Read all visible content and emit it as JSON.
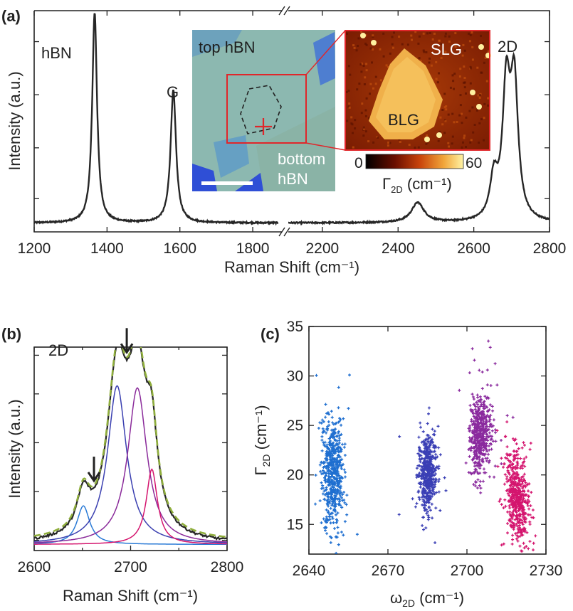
{
  "chart_data": [
    {
      "panel": "(a)",
      "type": "line",
      "xlabel": "Raman Shift (cm⁻¹)",
      "ylabel": "Intensity (a.u.)",
      "x_ticks_left": [
        1200,
        1400,
        1600,
        1800
      ],
      "x_ticks_right": [
        2200,
        2400,
        2600,
        2800
      ],
      "xlim_left": [
        1200,
        1880
      ],
      "xlim_right": [
        2110,
        2800
      ],
      "ylim": [
        0,
        1
      ],
      "broken_axis": true,
      "baseline": 0.04,
      "peaks": [
        {
          "label": "hBN",
          "center": 1366,
          "height": 0.95,
          "width": 8
        },
        {
          "label": "G",
          "center": 1582,
          "height": 0.6,
          "width": 9
        },
        {
          "label": "",
          "center": 2452,
          "height": 0.09,
          "width": 20
        },
        {
          "label": "",
          "center": 2653,
          "height": 0.18,
          "width": 12
        },
        {
          "label": "2D",
          "center": 2686,
          "height": 0.58,
          "width": 12
        },
        {
          "label": "",
          "center": 2707,
          "height": 0.6,
          "width": 12
        }
      ],
      "annotations": [
        "hBN",
        "G",
        "2D"
      ],
      "inset_left": {
        "top_label": "top hBN",
        "bottom_label_1": "bottom",
        "bottom_label_2": "hBN"
      },
      "inset_right": {
        "labels": [
          "SLG",
          "BLG"
        ],
        "colorbar_min": "0",
        "colorbar_max": "60",
        "colorbar_label": "Γ",
        "colorbar_label_sub": "2D",
        "colorbar_label_unit": " (cm⁻¹)"
      }
    },
    {
      "panel": "(b)",
      "type": "line",
      "title": "2D",
      "xlabel": "Raman Shift (cm⁻¹)",
      "ylabel": "Intensity (a.u.)",
      "x_ticks": [
        2600,
        2700,
        2800
      ],
      "xlim": [
        2600,
        2800
      ],
      "ylim": [
        0,
        1
      ],
      "components": [
        {
          "center": 2651,
          "height": 0.19,
          "width": 8,
          "color": "#2a7ad6"
        },
        {
          "center": 2686,
          "height": 0.78,
          "width": 12,
          "color": "#3a3fb0"
        },
        {
          "center": 2707,
          "height": 0.77,
          "width": 12,
          "color": "#8a2a9a"
        },
        {
          "center": 2722,
          "height": 0.37,
          "width": 7,
          "color": "#d4146e"
        }
      ],
      "baseline": 0.03,
      "fit_color": "#8fae3c",
      "arrows_at": [
        2662,
        2696
      ]
    },
    {
      "panel": "(c)",
      "type": "scatter",
      "xlabel": "ω",
      "xlabel_sub": "2D",
      "xlabel_unit": " (cm⁻¹)",
      "ylabel": "Γ",
      "ylabel_sub": "2D",
      "ylabel_unit": " (cm⁻¹)",
      "x_ticks": [
        2640,
        2670,
        2700,
        2730
      ],
      "y_ticks": [
        15,
        20,
        25,
        30,
        35
      ],
      "xlim": [
        2640,
        2730
      ],
      "ylim": [
        12,
        35
      ],
      "clusters": [
        {
          "center_x": 2649,
          "center_y": 20,
          "spread_x": 2.0,
          "spread_y": 2.8,
          "n": 550,
          "color": "#1f6fd0"
        },
        {
          "center_x": 2685,
          "center_y": 20.3,
          "spread_x": 1.7,
          "spread_y": 1.8,
          "n": 500,
          "color": "#3a3fb5"
        },
        {
          "center_x": 2705,
          "center_y": 24,
          "spread_x": 2.0,
          "spread_y": 1.9,
          "n": 500,
          "color": "#8a2a9e"
        },
        {
          "center_x": 2719,
          "center_y": 17.8,
          "spread_x": 2.2,
          "spread_y": 2.2,
          "n": 500,
          "color": "#d4146e"
        }
      ]
    }
  ]
}
